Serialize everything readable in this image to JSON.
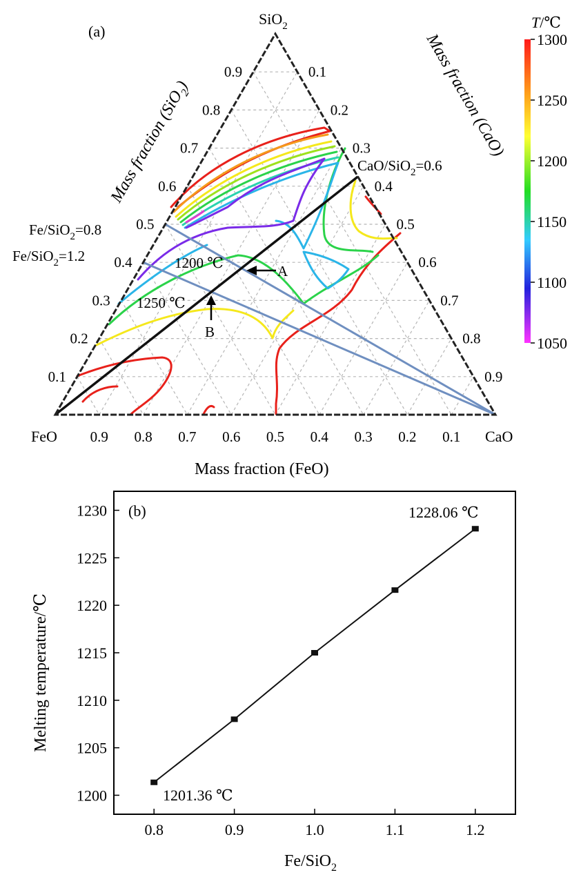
{
  "chart_data": [
    {
      "type": "ternary",
      "panel_label": "(a)",
      "vertices": {
        "top": "SiO",
        "top_sub": "2",
        "left": "FeO",
        "right": "CaO"
      },
      "axis_titles": {
        "left": "Mass fraction (SiO",
        "left_sub": "2",
        "left_end": ")",
        "right": "Mass fraction (CaO)",
        "bottom": "Mass fraction (FeO)"
      },
      "ticks": {
        "left_sio2": [
          "0.9",
          "0.8",
          "0.7",
          "0.6",
          "0.5",
          "0.4",
          "0.3",
          "0.2",
          "0.1"
        ],
        "left_values": [
          0.9,
          0.8,
          0.7,
          0.6,
          0.5,
          0.4,
          0.3,
          0.2,
          0.1
        ],
        "right_cao": [
          "0.1",
          "0.2",
          "0.3",
          "0.4",
          "0.5",
          "0.6",
          "0.7",
          "0.8",
          "0.9"
        ],
        "right_values": [
          0.1,
          0.2,
          0.3,
          0.4,
          0.5,
          0.6,
          0.7,
          0.8,
          0.9
        ],
        "bottom_feo": [
          "0.9",
          "0.8",
          "0.7",
          "0.6",
          "0.5",
          "0.4",
          "0.3",
          "0.2",
          "0.1"
        ],
        "bottom_values": [
          0.9,
          0.8,
          0.7,
          0.6,
          0.5,
          0.4,
          0.3,
          0.2,
          0.1
        ]
      },
      "lines": [
        {
          "label": "Fe/SiO",
          "label_sub": "2",
          "label_val": "=0.8",
          "color": "#6f8fc0",
          "from": {
            "feo": 0.5,
            "sio2": 0.5,
            "cao": 0.0
          },
          "to": {
            "feo": 0.0,
            "sio2": 0.0,
            "cao": 1.0
          }
        },
        {
          "label": "Fe/SiO",
          "label_sub": "2",
          "label_val": "=1.2",
          "color": "#6f8fc0",
          "from": {
            "feo": 0.6,
            "sio2": 0.4,
            "cao": 0.0
          },
          "to": {
            "feo": 0.0,
            "sio2": 0.0,
            "cao": 1.0
          }
        },
        {
          "label": "CaO/SiO",
          "label_sub": "2",
          "label_val": "=0.6",
          "color": "#111111",
          "from": {
            "feo": 1.0,
            "sio2": 0.0,
            "cao": 0.0
          },
          "to": {
            "feo": 0.0,
            "sio2": 0.625,
            "cao": 0.375
          }
        }
      ],
      "annotations": [
        {
          "text": "1200 ℃"
        },
        {
          "text": "A"
        },
        {
          "text": "1250 ℃"
        },
        {
          "text": "B"
        }
      ],
      "colorbar": {
        "title": "T",
        "unit": "/℃",
        "ticks": [
          "1300",
          "1250",
          "1200",
          "1150",
          "1100",
          "1050"
        ],
        "range": [
          1050,
          1300
        ],
        "colors": [
          "#ff1a1a",
          "#ffff33",
          "#22dd22",
          "#33ccff",
          "#2222dd",
          "#ff33ff"
        ]
      },
      "isotherm_colors": {
        "1300": "#e8211b",
        "1250": "#f5e81c",
        "1225": "#9ee21c",
        "1200": "#2bd34a",
        "1175": "#2bd3b0",
        "1150": "#2bb5e8",
        "1100": "#3a6ee8",
        "1075": "#7a2be8",
        "1050": "#e23bd0"
      }
    },
    {
      "type": "line",
      "panel_label": "(b)",
      "xlabel": "Fe/SiO",
      "xlabel_sub": "2",
      "ylabel": "Melting temperature/℃",
      "x": [
        0.8,
        0.9,
        1.0,
        1.1,
        1.2
      ],
      "y": [
        1201.36,
        1208.0,
        1215.0,
        1221.6,
        1228.06
      ],
      "xlim": [
        0.75,
        1.25
      ],
      "ylim": [
        1198,
        1232
      ],
      "xticks": [
        "0.8",
        "0.9",
        "1.0",
        "1.1",
        "1.2"
      ],
      "xtick_values": [
        0.8,
        0.9,
        1.0,
        1.1,
        1.2
      ],
      "yticks": [
        "1200",
        "1205",
        "1210",
        "1215",
        "1220",
        "1225",
        "1230"
      ],
      "ytick_values": [
        1200,
        1205,
        1210,
        1215,
        1220,
        1225,
        1230
      ],
      "annotations": [
        {
          "text": "1228.06 ℃",
          "point": 4
        },
        {
          "text": "1201.36 ℃",
          "point": 0
        }
      ],
      "grid": false,
      "legend": "none"
    }
  ]
}
